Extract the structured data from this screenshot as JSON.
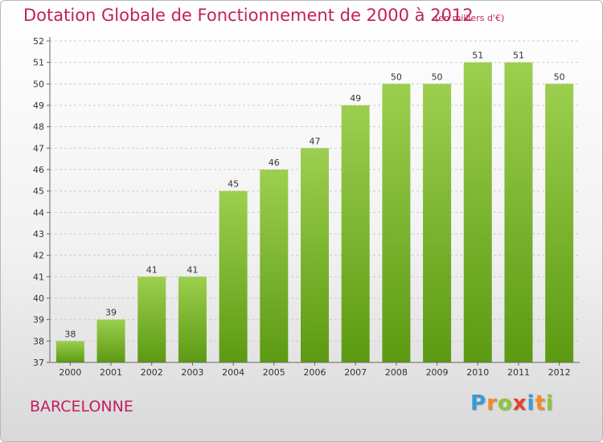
{
  "title": "Dotation Globale de Fonctionnement de 2000 à 2012",
  "unit_note": "(en milliers d'€)",
  "commune": "BARCELONNE",
  "brand": {
    "letters": [
      "P",
      "r",
      "o",
      "x",
      "i",
      "t",
      "i"
    ],
    "colors": [
      "#3a9ad9",
      "#f28c28",
      "#8cc63f",
      "#e8412c",
      "#3a9ad9",
      "#f28c28",
      "#8cc63f"
    ]
  },
  "colors": {
    "bar_top": "#9ccf4f",
    "bar_bottom": "#5c9a12",
    "title": "#c21f5e",
    "grid": "#cccccc"
  },
  "chart_data": {
    "type": "bar",
    "categories": [
      "2000",
      "2001",
      "2002",
      "2003",
      "2004",
      "2005",
      "2006",
      "2007",
      "2008",
      "2009",
      "2010",
      "2011",
      "2012"
    ],
    "values": [
      38,
      39,
      41,
      41,
      45,
      46,
      47,
      49,
      50,
      50,
      51,
      51,
      50
    ],
    "ylim": [
      37,
      52
    ],
    "yticks": [
      37,
      38,
      39,
      40,
      41,
      42,
      43,
      44,
      45,
      46,
      47,
      48,
      49,
      50,
      51,
      52
    ],
    "grid": true,
    "data_labels": true
  }
}
